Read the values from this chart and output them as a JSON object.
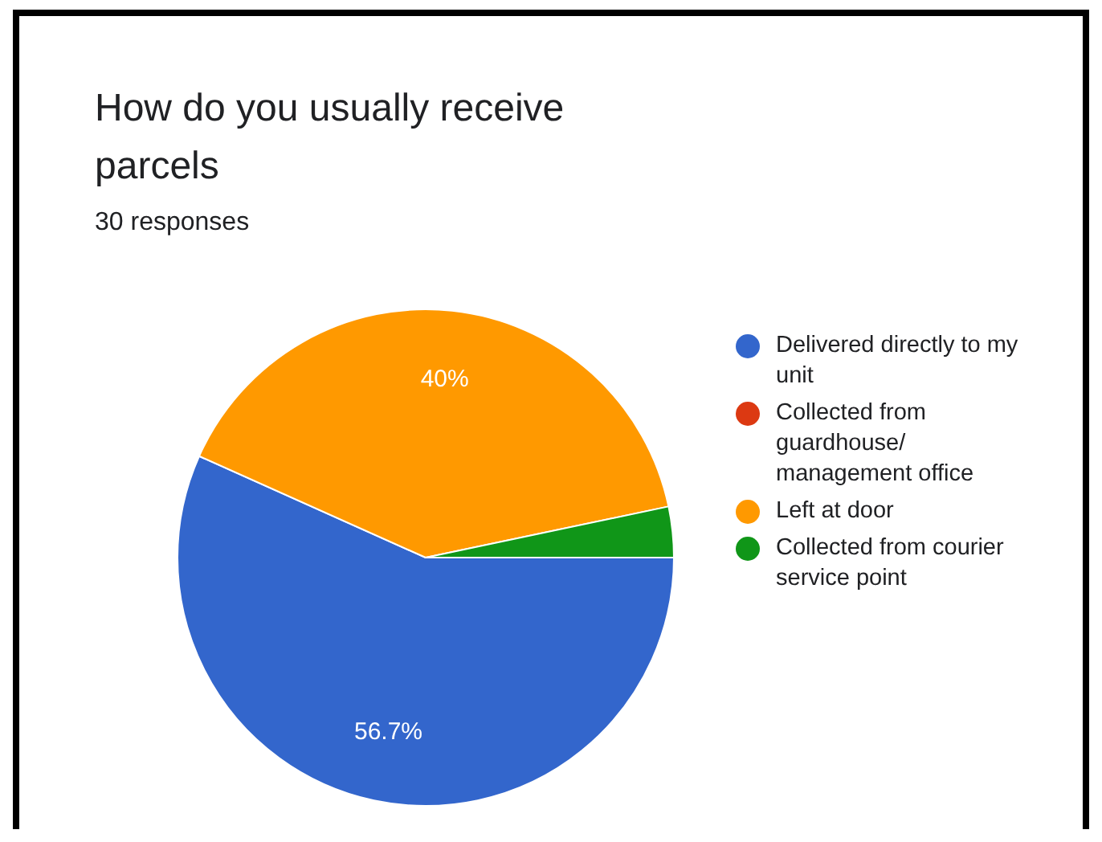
{
  "chart_data": {
    "type": "pie",
    "title": "How do you usually receive parcels",
    "subtitle": "30 responses",
    "categories": [
      "Delivered directly to my unit",
      "Collected from guardhouse/ management office",
      "Left at door",
      "Collected from courier service point"
    ],
    "values": [
      56.7,
      0,
      40,
      3.3
    ],
    "colors": [
      "#3366cc",
      "#dc3912",
      "#ff9900",
      "#109618"
    ],
    "value_labels": [
      "56.7%",
      null,
      "40%",
      null
    ],
    "legend": "right"
  }
}
